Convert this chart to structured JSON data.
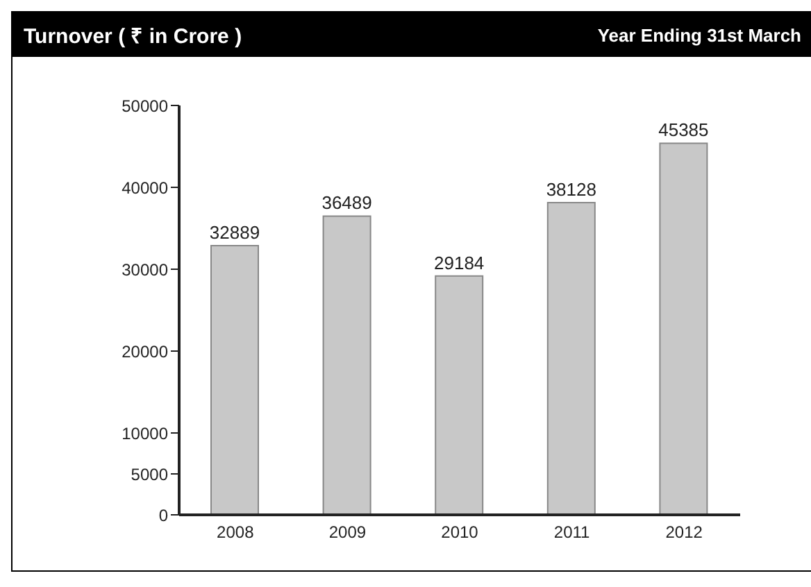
{
  "chart_data": {
    "type": "bar",
    "title": "Turnover ( ₹ in Crore )",
    "subtitle": "Year Ending 31st March",
    "categories": [
      "2008",
      "2009",
      "2010",
      "2011",
      "2012"
    ],
    "values": [
      32889,
      36489,
      29184,
      38128,
      45385
    ],
    "color": "#c8c8c8",
    "ylim": [
      0,
      50000
    ],
    "yticks": [
      0,
      5000,
      10000,
      20000,
      30000,
      40000,
      50000
    ],
    "data_labels": true,
    "grid": false,
    "legend": false
  }
}
